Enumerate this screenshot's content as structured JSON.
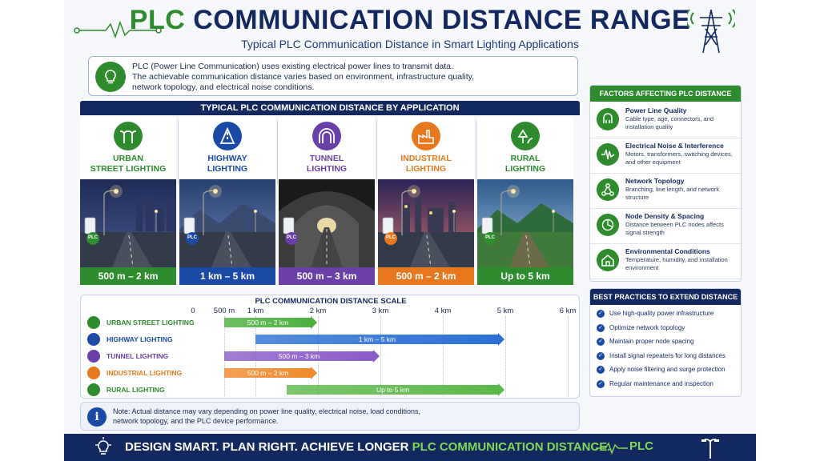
{
  "header": {
    "title_part1": "PLC",
    "title_part2": "COMMUNICATION DISTANCE RANGE",
    "subtitle": "Typical PLC Communication Distance in Smart Lighting Applications"
  },
  "intro": {
    "line1": "PLC (Power Line Communication) uses existing electrical power lines to transmit data.",
    "line2": "The achievable communication distance varies based on environment, infrastructure quality,",
    "line3": "network topology, and electrical noise conditions."
  },
  "applications": {
    "heading": "TYPICAL PLC COMMUNICATION DISTANCE BY APPLICATION",
    "badge": "PLC",
    "items": [
      {
        "line1": "URBAN",
        "line2": "STREET LIGHTING",
        "range": "500 m – 2 km",
        "color": "#2e8b2e"
      },
      {
        "line1": "HIGHWAY",
        "line2": "LIGHTING",
        "range": "1 km – 5 km",
        "color": "#1b4aa6"
      },
      {
        "line1": "TUNNEL",
        "line2": "LIGHTING",
        "range": "500 m – 3 km",
        "color": "#6a3fa8"
      },
      {
        "line1": "INDUSTRIAL",
        "line2": "LIGHTING",
        "range": "500 m – 2 km",
        "color": "#e8781e"
      },
      {
        "line1": "RURAL",
        "line2": "LIGHTING",
        "range": "Up to 5 km",
        "color": "#2e8b2e"
      }
    ]
  },
  "scale": {
    "title": "PLC COMMUNICATION DISTANCE SCALE",
    "ticks": [
      {
        "label": "0",
        "km": 0
      },
      {
        "label": "500 m",
        "km": 0.5
      },
      {
        "label": "1 km",
        "km": 1
      },
      {
        "label": "2 km",
        "km": 2
      },
      {
        "label": "3 km",
        "km": 3
      },
      {
        "label": "4 km",
        "km": 4
      },
      {
        "label": "5 km",
        "km": 5
      },
      {
        "label": "6 km",
        "km": 6
      }
    ],
    "rows": [
      {
        "label": "URBAN STREET LIGHTING",
        "bar_label": "500 m – 2 km",
        "start_km": 0.5,
        "end_km": 2,
        "color": "#2e8b2e",
        "bar_color": "#4caf3f"
      },
      {
        "label": "HIGHWAY LIGHTING",
        "bar_label": "1 km – 5 km",
        "start_km": 1,
        "end_km": 5,
        "color": "#1b4aa6",
        "bar_color": "#2c6fd6"
      },
      {
        "label": "TUNNEL LIGHTING",
        "bar_label": "500 m – 3 km",
        "start_km": 0.5,
        "end_km": 3,
        "color": "#6a3fa8",
        "bar_color": "#8b5cc9"
      },
      {
        "label": "INDUSTRIAL LIGHTING",
        "bar_label": "500 m – 2 km",
        "start_km": 0.5,
        "end_km": 2,
        "color": "#e8781e",
        "bar_color": "#f08a2c"
      },
      {
        "label": "RURAL LIGHTING",
        "bar_label": "Up to 5 km",
        "start_km": 1.5,
        "end_km": 5,
        "color": "#2e8b2e",
        "bar_color": "#5cb84a"
      }
    ]
  },
  "note": {
    "line1": "Note: Actual distance may vary depending on power line quality, electrical noise, load conditions,",
    "line2": "network topology, and the PLC device performance."
  },
  "factors": {
    "heading": "FACTORS AFFECTING PLC DISTANCE",
    "items": [
      {
        "title": "Power Line Quality",
        "desc": "Cable type, age, connectors, and installation quality",
        "icon": "cable-icon"
      },
      {
        "title": "Electrical Noise & Interference",
        "desc": "Motors, transformers, switching devices, and other equipment",
        "icon": "noise-wave-icon"
      },
      {
        "title": "Network Topology",
        "desc": "Branching, line length, and network structure",
        "icon": "topology-icon"
      },
      {
        "title": "Node Density & Spacing",
        "desc": "Distance between PLC nodes affects signal strength",
        "icon": "node-density-icon"
      },
      {
        "title": "Environmental Conditions",
        "desc": "Temperature, humidity, and installation environment",
        "icon": "environment-icon"
      }
    ]
  },
  "best_practices": {
    "heading": "BEST PRACTICES TO EXTEND DISTANCE",
    "items": [
      "Use high-quality power infrastructure",
      "Optimize network topology",
      "Maintain proper node spacing",
      "Install signal repeaters for long distances",
      "Apply noise filtering and surge protection",
      "Regular maintenance and inspection"
    ]
  },
  "footer": {
    "slogan_white": "DESIGN SMART. PLAN RIGHT. ACHIEVE LONGER",
    "slogan_green": "PLC COMMUNICATION DISTANCE.",
    "plc": "PLC"
  }
}
